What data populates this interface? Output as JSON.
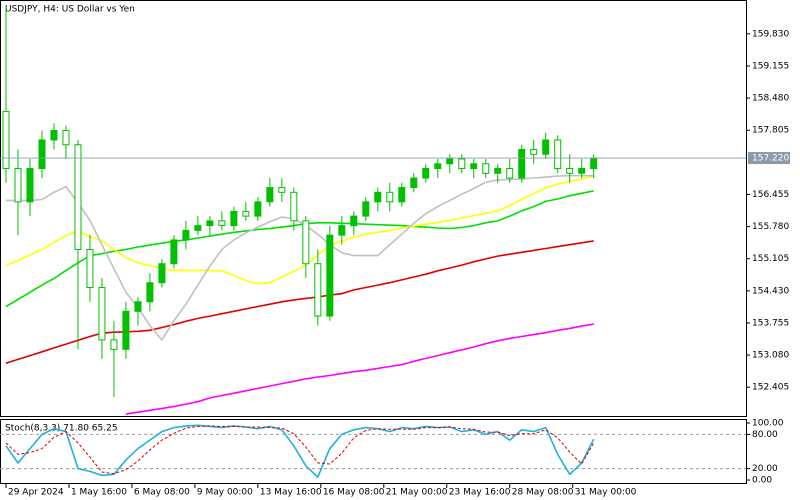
{
  "chart_data": [
    {
      "type": "candlestick",
      "title": "USDJPY, H4:  US Dollar vs Yen",
      "open": [
        158.2,
        157.0,
        156.3,
        157.0,
        157.6,
        157.8,
        157.5,
        155.3,
        154.5,
        153.4,
        153.2,
        154.0,
        154.2,
        154.6,
        155.0,
        155.5,
        155.7,
        155.8,
        155.9,
        155.8,
        156.1,
        156.0,
        156.3,
        156.6,
        156.5,
        155.9,
        155.0,
        153.9,
        155.6,
        155.8,
        156.0,
        156.3,
        156.5,
        156.3,
        156.6,
        156.8,
        157.0,
        157.1,
        157.2,
        157.0,
        157.1,
        156.9,
        157.0,
        156.8,
        157.4,
        157.3,
        157.6,
        157.0,
        156.9,
        157.0
      ],
      "high": [
        160.4,
        157.4,
        157.2,
        157.8,
        157.95,
        157.9,
        157.6,
        155.6,
        154.7,
        153.8,
        154.2,
        154.3,
        154.8,
        155.1,
        155.6,
        155.9,
        156.0,
        156.0,
        156.1,
        156.2,
        156.3,
        156.4,
        156.8,
        156.8,
        156.6,
        156.0,
        155.3,
        155.8,
        156.0,
        156.1,
        156.4,
        156.6,
        156.7,
        156.7,
        156.9,
        157.1,
        157.2,
        157.3,
        157.3,
        157.2,
        157.2,
        157.1,
        157.2,
        157.5,
        157.6,
        157.75,
        157.7,
        157.3,
        157.2,
        157.3
      ],
      "low": [
        156.7,
        155.6,
        156.0,
        156.8,
        157.4,
        157.2,
        153.2,
        154.2,
        153.0,
        152.2,
        153.0,
        153.7,
        154.0,
        154.5,
        154.9,
        155.3,
        155.6,
        155.6,
        155.7,
        155.7,
        155.9,
        155.9,
        156.2,
        156.3,
        155.7,
        154.7,
        153.7,
        153.8,
        155.4,
        155.6,
        155.9,
        156.1,
        156.1,
        156.2,
        156.5,
        156.7,
        156.8,
        156.9,
        156.9,
        156.8,
        156.8,
        156.7,
        156.7,
        156.7,
        157.1,
        157.2,
        156.9,
        156.7,
        156.8,
        156.8
      ],
      "close": [
        157.0,
        156.3,
        157.0,
        157.6,
        157.8,
        157.5,
        155.3,
        154.5,
        153.4,
        153.2,
        154.0,
        154.2,
        154.6,
        155.0,
        155.5,
        155.7,
        155.8,
        155.9,
        155.8,
        156.1,
        156.0,
        156.3,
        156.6,
        156.5,
        155.9,
        155.0,
        153.9,
        155.6,
        155.8,
        156.0,
        156.3,
        156.5,
        156.3,
        156.6,
        156.8,
        157.0,
        157.1,
        157.2,
        157.0,
        157.1,
        156.9,
        157.0,
        156.8,
        157.4,
        157.3,
        157.6,
        157.0,
        156.9,
        157.0,
        157.22
      ],
      "candle_color": "#00c000",
      "series": [
        {
          "color": "#e00000",
          "values": [
            152.91,
            152.99,
            153.07,
            153.15,
            153.23,
            153.31,
            153.39,
            153.47,
            153.54,
            153.56,
            153.57,
            153.58,
            153.6,
            153.66,
            153.72,
            153.79,
            153.85,
            153.9,
            153.95,
            154.0,
            154.05,
            154.1,
            154.15,
            154.2,
            154.24,
            154.27,
            154.3,
            154.34,
            154.37,
            154.45,
            154.5,
            154.55,
            154.6,
            154.66,
            154.72,
            154.78,
            154.85,
            154.91,
            154.97,
            155.04,
            155.1,
            155.16,
            155.2,
            155.24,
            155.28,
            155.32,
            155.36,
            155.4,
            155.44,
            155.48
          ]
        },
        {
          "color": "#ff00ff",
          "values": [
            null,
            null,
            null,
            null,
            null,
            null,
            null,
            null,
            null,
            null,
            151.84,
            151.88,
            151.92,
            151.96,
            152.0,
            152.05,
            152.1,
            152.18,
            152.23,
            152.28,
            152.33,
            152.38,
            152.43,
            152.48,
            152.53,
            152.58,
            152.62,
            152.65,
            152.69,
            152.73,
            152.76,
            152.8,
            152.84,
            152.88,
            152.95,
            153.01,
            153.07,
            153.13,
            153.19,
            153.25,
            153.32,
            153.38,
            153.43,
            153.47,
            153.51,
            153.55,
            153.6,
            153.64,
            153.69,
            153.73
          ]
        },
        {
          "color": "#00e000",
          "values": [
            154.1,
            154.25,
            154.4,
            154.55,
            154.69,
            154.86,
            155.02,
            155.17,
            155.21,
            155.26,
            155.3,
            155.35,
            155.39,
            155.43,
            155.47,
            155.5,
            155.54,
            155.58,
            155.62,
            155.66,
            155.69,
            155.72,
            155.74,
            155.77,
            155.8,
            155.84,
            155.86,
            155.86,
            155.85,
            155.84,
            155.83,
            155.82,
            155.81,
            155.8,
            155.78,
            155.77,
            155.75,
            155.74,
            155.76,
            155.8,
            155.86,
            155.9,
            156.0,
            156.11,
            156.2,
            156.31,
            156.36,
            156.43,
            156.48,
            156.53
          ]
        },
        {
          "color": "#ffff00",
          "values": [
            154.96,
            155.07,
            155.18,
            155.3,
            155.45,
            155.59,
            155.69,
            155.57,
            155.48,
            155.3,
            155.13,
            155.02,
            154.96,
            154.9,
            154.86,
            154.86,
            154.86,
            154.86,
            154.85,
            154.75,
            154.65,
            154.58,
            154.6,
            154.72,
            154.84,
            154.97,
            155.18,
            155.39,
            155.47,
            155.56,
            155.62,
            155.66,
            155.7,
            155.75,
            155.79,
            155.83,
            155.87,
            155.91,
            155.96,
            156.01,
            156.06,
            156.11,
            156.22,
            156.35,
            156.47,
            156.6,
            156.67,
            156.73,
            156.78,
            156.84
          ]
        },
        {
          "color": "#c0c0c0",
          "values": [
            156.33,
            156.33,
            156.33,
            156.35,
            156.5,
            156.62,
            156.28,
            155.91,
            155.4,
            154.9,
            154.4,
            154.08,
            153.7,
            153.4,
            153.8,
            154.15,
            154.55,
            154.95,
            155.3,
            155.5,
            155.65,
            155.77,
            155.88,
            155.98,
            155.95,
            155.8,
            155.62,
            155.4,
            155.23,
            155.17,
            155.17,
            155.17,
            155.4,
            155.62,
            155.85,
            156.05,
            156.2,
            156.33,
            156.46,
            156.58,
            156.71,
            156.76,
            156.77,
            156.78,
            156.8,
            156.82,
            156.84,
            156.85,
            156.85,
            156.85
          ]
        }
      ],
      "last_price": {
        "value": 157.22,
        "label": "157.220"
      },
      "ylim": [
        151.8,
        160.52
      ],
      "yticks": [
        152.405,
        {
          "value": 153.08,
          "label": "153.080"
        },
        153.755,
        {
          "value": 154.43,
          "label": "154.430"
        },
        155.105,
        {
          "value": 155.78,
          "label": "155.780"
        },
        156.455,
        157.805,
        {
          "value": 158.48,
          "label": "158.480"
        },
        159.155,
        {
          "value": 159.83,
          "label": "159.830"
        }
      ],
      "xlim": [
        -0.5,
        61.7
      ],
      "xticks": [
        {
          "value": 0,
          "label": "29 Apr 2024"
        },
        {
          "value": 5.25,
          "label": "1 May 16:00"
        },
        {
          "value": 10.5,
          "label": "6 May 08:00"
        },
        {
          "value": 15.75,
          "label": "9 May 00:00"
        },
        {
          "value": 21,
          "label": "13 May 16:00"
        },
        {
          "value": 26.25,
          "label": "16 May 08:00"
        },
        {
          "value": 31.5,
          "label": "21 May 00:00"
        },
        {
          "value": 36.75,
          "label": "23 May 16:00"
        },
        {
          "value": 42,
          "label": "28 May 08:00"
        },
        {
          "value": 47.25,
          "label": "31 May 00:00"
        }
      ]
    },
    {
      "type": "line",
      "title": "Stoch(8,3,3) 71.80 65.25",
      "series": [
        {
          "color": "#20b0e0",
          "values": [
            60,
            30,
            55,
            80,
            90,
            85,
            20,
            15,
            8,
            10,
            35,
            55,
            70,
            85,
            92,
            95,
            96,
            94,
            92,
            95,
            93,
            90,
            94,
            88,
            60,
            25,
            5,
            55,
            80,
            88,
            92,
            90,
            85,
            92,
            90,
            94,
            92,
            93,
            85,
            88,
            80,
            85,
            70,
            88,
            85,
            92,
            45,
            10,
            30,
            71.8
          ]
        },
        {
          "color": "#e00000",
          "dashed": true,
          "values": [
            65,
            45,
            48,
            55,
            75,
            85,
            65,
            40,
            14,
            11,
            18,
            33,
            53,
            70,
            82,
            91,
            94,
            95,
            94,
            94,
            93,
            93,
            92,
            91,
            81,
            58,
            30,
            28,
            47,
            74,
            87,
            90,
            89,
            89,
            89,
            92,
            92,
            93,
            90,
            89,
            84,
            84,
            78,
            81,
            81,
            88,
            74,
            49,
            28,
            65.25
          ]
        }
      ],
      "ylim": [
        0,
        100
      ],
      "yticks": [
        {
          "value": 100,
          "label": "100.00"
        },
        {
          "value": 80,
          "label": "80.00"
        },
        {
          "value": 20,
          "label": "20.00"
        },
        {
          "value": 0,
          "label": "0.00"
        }
      ]
    }
  ]
}
